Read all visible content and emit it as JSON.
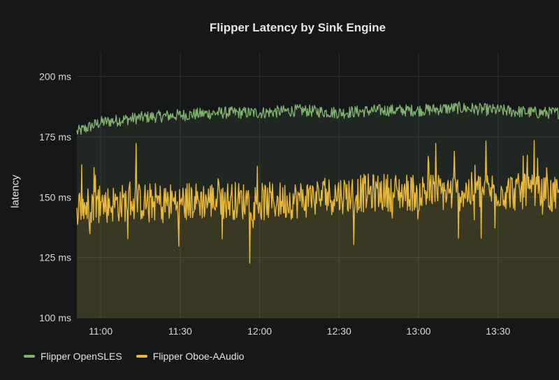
{
  "chart_data": {
    "type": "area",
    "title": "Flipper Latency by Sink Engine",
    "ylabel": "latency",
    "xlabel": "",
    "x_start": "10:51",
    "x_end": "13:53",
    "x_ticks": [
      "11:00",
      "11:30",
      "12:00",
      "12:30",
      "13:00",
      "13:30"
    ],
    "y_ticks": [
      "100 ms",
      "125 ms",
      "150 ms",
      "175 ms",
      "200 ms"
    ],
    "ylim": [
      100,
      210
    ],
    "grid": true,
    "legend_position": "bottom-left",
    "series": [
      {
        "name": "Flipper OpenSLES",
        "color": "#7eb26d",
        "approx_x": [
          "10:51",
          "11:00",
          "11:15",
          "11:30",
          "11:45",
          "12:00",
          "12:15",
          "12:30",
          "12:45",
          "13:00",
          "13:15",
          "13:30",
          "13:45",
          "13:53"
        ],
        "approx_values": [
          177,
          181,
          183,
          184,
          185,
          185,
          186,
          185,
          186,
          186,
          187,
          186,
          185,
          185
        ],
        "noise": 2.5
      },
      {
        "name": "Flipper Oboe-AAudio",
        "color": "#eab839",
        "approx_x": [
          "10:51",
          "11:00",
          "11:15",
          "11:30",
          "11:45",
          "12:00",
          "12:15",
          "12:30",
          "12:45",
          "13:00",
          "13:15",
          "13:30",
          "13:45",
          "13:53"
        ],
        "approx_values": [
          146,
          147,
          148,
          148,
          149,
          148,
          149,
          151,
          152,
          152,
          152,
          153,
          151,
          150
        ],
        "noise": 8
      }
    ]
  }
}
